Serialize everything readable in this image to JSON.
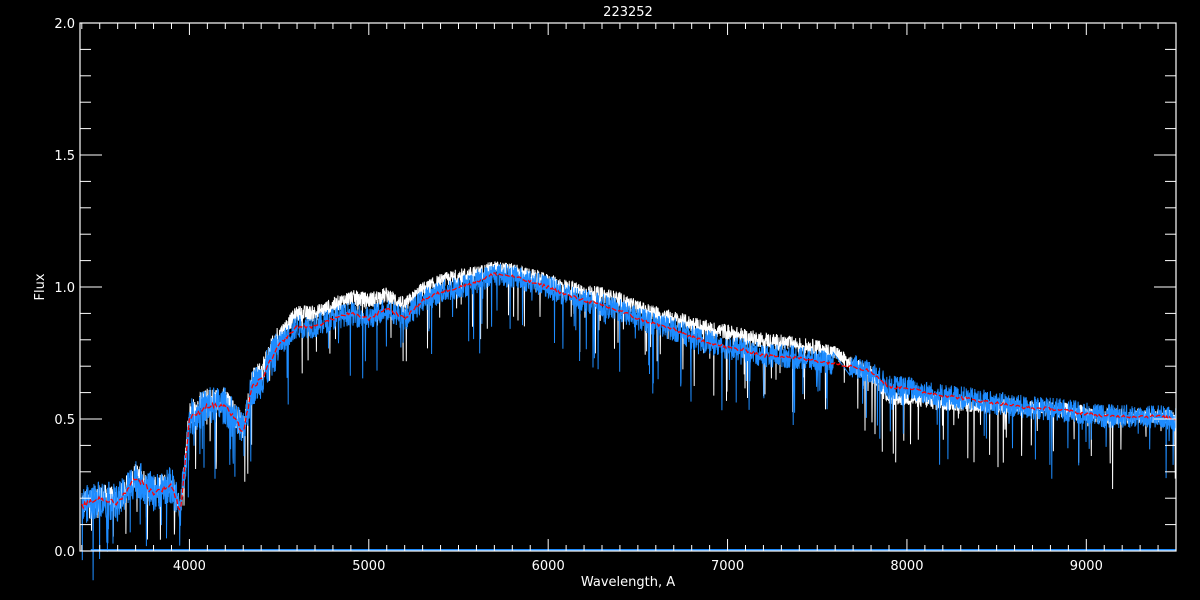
{
  "chart_data": {
    "type": "line",
    "title": "223252",
    "xlabel": "Wavelength, A",
    "ylabel": "Flux",
    "xlim": [
      3390,
      9500
    ],
    "ylim": [
      0.0,
      2.0
    ],
    "x_ticks": [
      "4000",
      "5000",
      "6000",
      "7000",
      "8000",
      "9000"
    ],
    "y_ticks": [
      "0.0",
      "0.5",
      "1.0",
      "1.5",
      "2.0"
    ],
    "grid": false,
    "legend": "none",
    "colors": {
      "background": "#000000",
      "axes": "#ffffff",
      "observed": "#1e8cff",
      "model": "#ffffff",
      "smoothed": "#ff0000"
    },
    "x": [
      3400,
      3500,
      3600,
      3700,
      3800,
      3900,
      3950,
      4000,
      4100,
      4200,
      4300,
      4350,
      4400,
      4500,
      4600,
      4700,
      4800,
      4900,
      5000,
      5100,
      5200,
      5300,
      5400,
      5500,
      5600,
      5700,
      5800,
      5900,
      6000,
      6100,
      6200,
      6300,
      6400,
      6500,
      6600,
      6700,
      6800,
      6900,
      7000,
      7100,
      7200,
      7300,
      7400,
      7500,
      7600,
      7700,
      7800,
      7900,
      8000,
      8100,
      8200,
      8300,
      8400,
      8500,
      8600,
      8700,
      8800,
      8900,
      9000,
      9100,
      9200,
      9300,
      9400,
      9500
    ],
    "series": [
      {
        "values": [
          0.17,
          0.2,
          0.18,
          0.28,
          0.22,
          0.25,
          0.15,
          0.5,
          0.55,
          0.55,
          0.45,
          0.62,
          0.65,
          0.78,
          0.85,
          0.85,
          0.88,
          0.9,
          0.88,
          0.92,
          0.88,
          0.95,
          0.98,
          1.0,
          1.02,
          1.05,
          1.04,
          1.02,
          1.0,
          0.97,
          0.95,
          0.93,
          0.91,
          0.88,
          0.86,
          0.84,
          0.81,
          0.79,
          0.77,
          0.76,
          0.74,
          0.74,
          0.73,
          0.72,
          0.71,
          0.7,
          0.68,
          0.62,
          0.62,
          0.6,
          0.59,
          0.58,
          0.57,
          0.56,
          0.55,
          0.54,
          0.54,
          0.53,
          0.52,
          0.51,
          0.51,
          0.51,
          0.51,
          0.5
        ]
      },
      {
        "values": [
          0.18,
          0.21,
          0.19,
          0.29,
          0.23,
          0.26,
          0.16,
          0.52,
          0.57,
          0.57,
          0.47,
          0.64,
          0.68,
          0.82,
          0.9,
          0.9,
          0.93,
          0.96,
          0.95,
          0.97,
          0.93,
          0.99,
          1.02,
          1.04,
          1.05,
          1.07,
          1.06,
          1.04,
          1.02,
          1.0,
          0.98,
          0.97,
          0.95,
          0.92,
          0.9,
          0.88,
          0.86,
          0.84,
          0.83,
          0.81,
          0.8,
          0.79,
          0.78,
          0.77,
          0.75,
          0.7,
          0.68,
          0.58,
          0.58,
          0.57,
          0.56,
          0.56,
          0.55,
          0.55,
          0.55,
          0.54,
          0.54,
          0.53,
          0.52,
          0.51,
          0.51,
          0.51,
          0.51,
          0.5
        ]
      },
      {
        "values": [
          0.17,
          0.2,
          0.18,
          0.28,
          0.22,
          0.25,
          0.15,
          0.5,
          0.55,
          0.55,
          0.45,
          0.62,
          0.65,
          0.78,
          0.85,
          0.85,
          0.88,
          0.9,
          0.88,
          0.92,
          0.88,
          0.95,
          0.98,
          1.0,
          1.02,
          1.05,
          1.04,
          1.02,
          1.0,
          0.97,
          0.95,
          0.93,
          0.91,
          0.88,
          0.86,
          0.84,
          0.81,
          0.79,
          0.77,
          0.76,
          0.74,
          0.74,
          0.73,
          0.72,
          0.71,
          0.7,
          0.68,
          0.62,
          0.62,
          0.6,
          0.59,
          0.58,
          0.57,
          0.56,
          0.55,
          0.54,
          0.54,
          0.53,
          0.52,
          0.51,
          0.51,
          0.51,
          0.51,
          0.5
        ]
      }
    ]
  }
}
